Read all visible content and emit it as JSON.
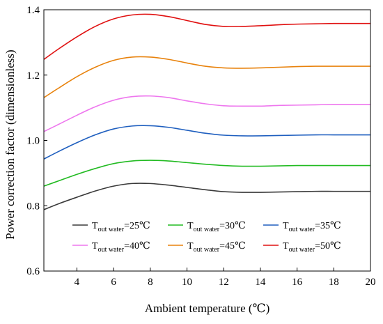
{
  "chart_data": {
    "type": "line",
    "title": "",
    "xlabel": "Ambient temperature (℃)",
    "ylabel": "Power correction factor (dimensionless)",
    "xlim": [
      2.2,
      20
    ],
    "ylim": [
      0.6,
      1.4
    ],
    "x_ticks": [
      4,
      6,
      8,
      10,
      12,
      14,
      16,
      18,
      20
    ],
    "x_tick_labels": [
      "4",
      "6",
      "8",
      "10",
      "12",
      "14",
      "16",
      "18",
      "20"
    ],
    "y_ticks": [
      0.6,
      0.8,
      1.0,
      1.2,
      1.4
    ],
    "y_tick_labels": [
      "0.6",
      "0.8",
      "1.0",
      "1.2",
      "1.4"
    ],
    "grid": false,
    "legend_position": "bottom",
    "x": [
      2.2,
      3,
      4,
      5,
      6,
      7,
      8,
      9,
      10,
      11,
      12,
      13,
      14,
      15,
      16,
      17,
      18,
      19,
      20
    ],
    "series": [
      {
        "name_main": "T",
        "name_sub": "out water",
        "name_suffix": "=25℃",
        "color": "#3a3a3a",
        "values": [
          0.788,
          0.806,
          0.826,
          0.845,
          0.86,
          0.868,
          0.868,
          0.863,
          0.856,
          0.849,
          0.843,
          0.841,
          0.841,
          0.842,
          0.843,
          0.844,
          0.844,
          0.844,
          0.844
        ]
      },
      {
        "name_main": "T",
        "name_sub": "out water",
        "name_suffix": "=30℃",
        "color": "#22bb22",
        "values": [
          0.86,
          0.876,
          0.896,
          0.914,
          0.929,
          0.937,
          0.939,
          0.937,
          0.932,
          0.927,
          0.923,
          0.921,
          0.921,
          0.922,
          0.923,
          0.923,
          0.923,
          0.923,
          0.923
        ]
      },
      {
        "name_main": "T",
        "name_sub": "out water",
        "name_suffix": "=35℃",
        "color": "#1f5fbf",
        "values": [
          0.943,
          0.966,
          0.993,
          1.017,
          1.035,
          1.044,
          1.045,
          1.04,
          1.031,
          1.022,
          1.016,
          1.014,
          1.014,
          1.015,
          1.016,
          1.017,
          1.017,
          1.017,
          1.017
        ]
      },
      {
        "name_main": "T",
        "name_sub": "out water",
        "name_suffix": "=40℃",
        "color": "#ee77ee",
        "values": [
          1.027,
          1.049,
          1.077,
          1.103,
          1.123,
          1.134,
          1.136,
          1.131,
          1.121,
          1.112,
          1.106,
          1.105,
          1.105,
          1.107,
          1.108,
          1.109,
          1.11,
          1.11,
          1.11
        ]
      },
      {
        "name_main": "T",
        "name_sub": "out water",
        "name_suffix": "=45℃",
        "color": "#e8820c",
        "values": [
          1.131,
          1.16,
          1.195,
          1.224,
          1.245,
          1.255,
          1.255,
          1.248,
          1.237,
          1.227,
          1.222,
          1.221,
          1.222,
          1.224,
          1.226,
          1.227,
          1.227,
          1.227,
          1.227
        ]
      },
      {
        "name_main": "T",
        "name_sub": "out water",
        "name_suffix": "=50℃",
        "color": "#e01010",
        "values": [
          1.248,
          1.28,
          1.317,
          1.349,
          1.372,
          1.384,
          1.386,
          1.379,
          1.367,
          1.355,
          1.349,
          1.349,
          1.351,
          1.354,
          1.356,
          1.357,
          1.358,
          1.358,
          1.358
        ]
      }
    ]
  }
}
